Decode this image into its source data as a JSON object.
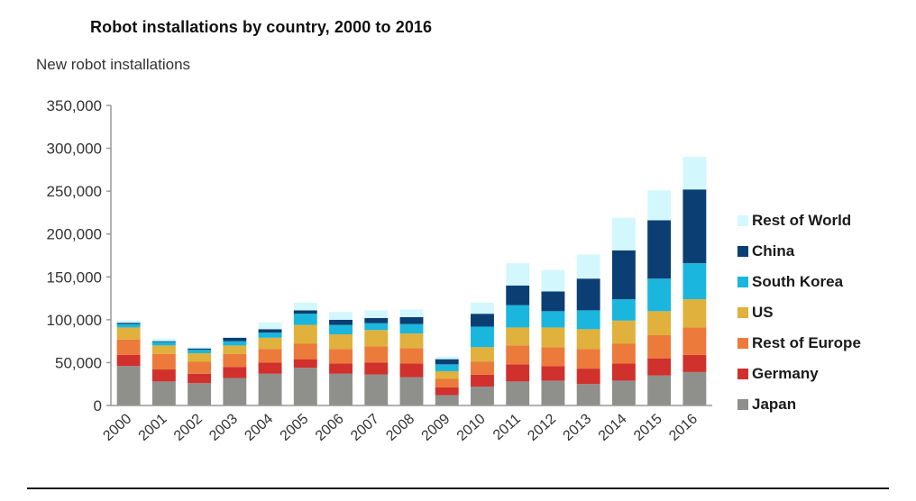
{
  "chart_data": {
    "type": "bar",
    "stacked": true,
    "title": "Robot installations by country, 2000 to 2016",
    "ylabel": "New robot installations",
    "xlabel": "",
    "ylim": [
      0,
      350000
    ],
    "yticks": [
      0,
      50000,
      100000,
      150000,
      200000,
      250000,
      300000,
      350000
    ],
    "ytick_labels": [
      "0",
      "50,000",
      "100,000",
      "150,000",
      "200,000",
      "250,000",
      "300,000",
      "350,000"
    ],
    "grid": false,
    "legend_position": "right",
    "categories": [
      "2000",
      "2001",
      "2002",
      "2003",
      "2004",
      "2005",
      "2006",
      "2007",
      "2008",
      "2009",
      "2010",
      "2011",
      "2012",
      "2013",
      "2014",
      "2015",
      "2016"
    ],
    "series": [
      {
        "name": "Japan",
        "color": "#8f8f8c",
        "values": [
          46000,
          28000,
          26000,
          32000,
          37000,
          44000,
          37000,
          36000,
          33000,
          12000,
          22000,
          28000,
          29000,
          25000,
          29000,
          35000,
          39000
        ]
      },
      {
        "name": "Germany",
        "color": "#d0312d",
        "values": [
          13000,
          14000,
          11000,
          13000,
          13000,
          10000,
          12000,
          14000,
          16000,
          9000,
          14000,
          20000,
          17000,
          18000,
          20000,
          20000,
          20000
        ]
      },
      {
        "name": "Rest of Europe",
        "color": "#ec7a3a",
        "values": [
          18000,
          18000,
          14000,
          15000,
          16000,
          18000,
          17000,
          19000,
          18000,
          10000,
          15000,
          22000,
          22000,
          23000,
          23000,
          27000,
          32000
        ]
      },
      {
        "name": "US",
        "color": "#e0b13c",
        "values": [
          14000,
          10000,
          10000,
          10000,
          13000,
          22000,
          17000,
          19000,
          17000,
          9000,
          17000,
          21000,
          23000,
          23000,
          27000,
          28000,
          33000
        ]
      },
      {
        "name": "South Korea",
        "color": "#1ab6dd",
        "values": [
          4000,
          4000,
          4000,
          5000,
          6000,
          13000,
          11000,
          8000,
          11000,
          8000,
          24000,
          26000,
          19000,
          22000,
          25000,
          38000,
          42000
        ]
      },
      {
        "name": "China",
        "color": "#0b3e73",
        "values": [
          1500,
          1000,
          1500,
          4000,
          4000,
          4000,
          6000,
          6000,
          8000,
          6000,
          15000,
          23000,
          23000,
          37000,
          57000,
          68000,
          86000
        ]
      },
      {
        "name": "Rest of World",
        "color": "#d2f8fd",
        "values": [
          2500,
          3000,
          1500,
          1000,
          8000,
          9000,
          9000,
          9000,
          9000,
          3000,
          13000,
          26000,
          25000,
          28000,
          38000,
          35000,
          38000
        ]
      }
    ],
    "legend_order": [
      "Rest of World",
      "China",
      "South Korea",
      "US",
      "Rest of Europe",
      "Germany",
      "Japan"
    ]
  }
}
